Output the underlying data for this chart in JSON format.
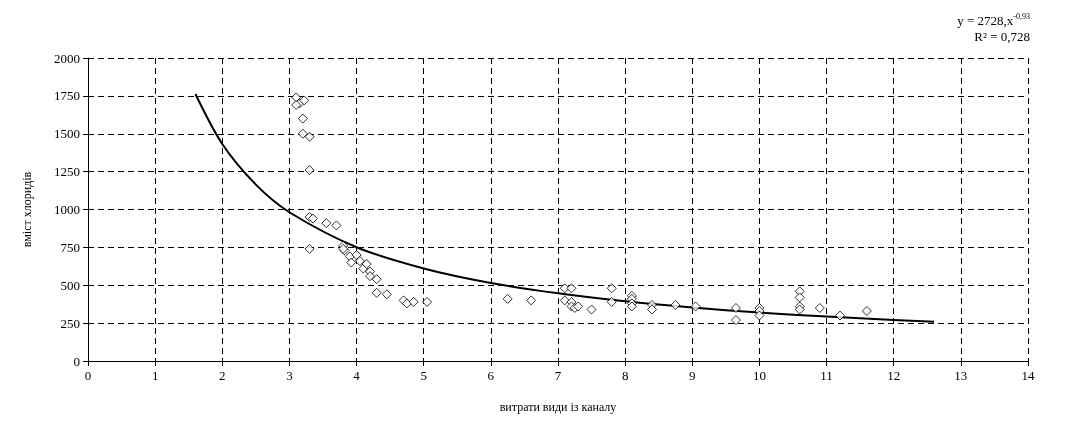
{
  "chart_data": {
    "type": "scatter",
    "xlabel": "витрати види із каналу",
    "ylabel": "вміст хлоридів",
    "annotations": [
      "y = 2728,x$^{-0,93}$",
      "R² = 0,728"
    ],
    "xlim": [
      0,
      14
    ],
    "xticks": [
      0,
      1,
      2,
      3,
      4,
      5,
      6,
      7,
      8,
      9,
      10,
      11,
      12,
      13,
      14
    ],
    "ylim": [
      0,
      2000
    ],
    "yticks": [
      0,
      250,
      500,
      750,
      1000,
      1250,
      1500,
      1750,
      2000
    ],
    "grid": true,
    "marker": "diamond",
    "series": [
      {
        "type": "scatter",
        "color": "#000000",
        "x": [
          3.1,
          3.15,
          3.1,
          3.22,
          3.2,
          3.2,
          3.3,
          3.3,
          3.3,
          3.35,
          3.3,
          3.55,
          3.7,
          3.8,
          3.82,
          3.8,
          3.9,
          3.92,
          4.0,
          4.05,
          4.1,
          4.15,
          4.2,
          4.2,
          4.3,
          4.3,
          4.45,
          4.7,
          4.75,
          4.85,
          5.05,
          6.25,
          6.6,
          7.1,
          7.1,
          7.2,
          7.2,
          7.2,
          7.25,
          7.3,
          7.5,
          7.8,
          7.8,
          8.1,
          8.1,
          8.1,
          8.1,
          8.4,
          8.4,
          8.75,
          9.05,
          9.65,
          9.65,
          10.0,
          10.0,
          10.0,
          10.6,
          10.6,
          10.6,
          10.6,
          10.9,
          11.2,
          11.6
        ],
        "values": [
          1740,
          1700,
          1690,
          1720,
          1600,
          1500,
          1480,
          1260,
          950,
          940,
          740,
          910,
          895,
          760,
          730,
          740,
          690,
          650,
          700,
          660,
          610,
          640,
          590,
          560,
          540,
          450,
          440,
          400,
          380,
          390,
          390,
          410,
          400,
          480,
          400,
          480,
          390,
          360,
          350,
          360,
          340,
          480,
          390,
          430,
          410,
          380,
          360,
          370,
          340,
          370,
          360,
          350,
          270,
          350,
          330,
          300,
          460,
          420,
          360,
          340,
          350,
          300,
          330
        ]
      },
      {
        "type": "line",
        "color": "#000000",
        "marker": "none",
        "x": [
          1.6,
          2,
          2.5,
          3,
          4,
          5,
          6,
          7,
          8,
          9,
          10,
          11,
          12,
          12.6
        ],
        "values": [
          1762,
          1432,
          1164,
          982,
          751,
          611,
          515,
          447,
          394,
          353,
          320,
          293,
          271,
          259
        ]
      }
    ]
  }
}
